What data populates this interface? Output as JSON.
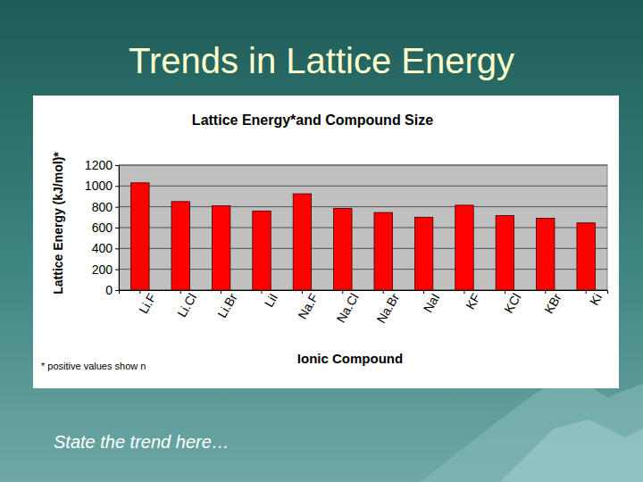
{
  "slide": {
    "title": "Trends in Lattice Energy",
    "text": "State the trend here…"
  },
  "chart_data": {
    "type": "bar",
    "title": "Lattice Energy*and Compound Size",
    "x_label": "Ionic Compound",
    "y_label": "Lattice Energy (kJ/mol)*",
    "annotations": [
      "* positive values show n"
    ],
    "categories": [
      "Li.F",
      "Li.Cl",
      "Li.Br",
      "LiI",
      "Na.F",
      "Na.Cl",
      "Na.Br",
      "NaI",
      "KF",
      "KCl",
      "KBr",
      "Ki"
    ],
    "values": [
      1030,
      850,
      810,
      760,
      925,
      785,
      745,
      700,
      815,
      715,
      690,
      645
    ],
    "color": "#ff0000",
    "ylim": [
      0,
      1200
    ],
    "yticks": [
      0,
      200,
      400,
      600,
      800,
      1000,
      1200
    ],
    "grid": true
  }
}
